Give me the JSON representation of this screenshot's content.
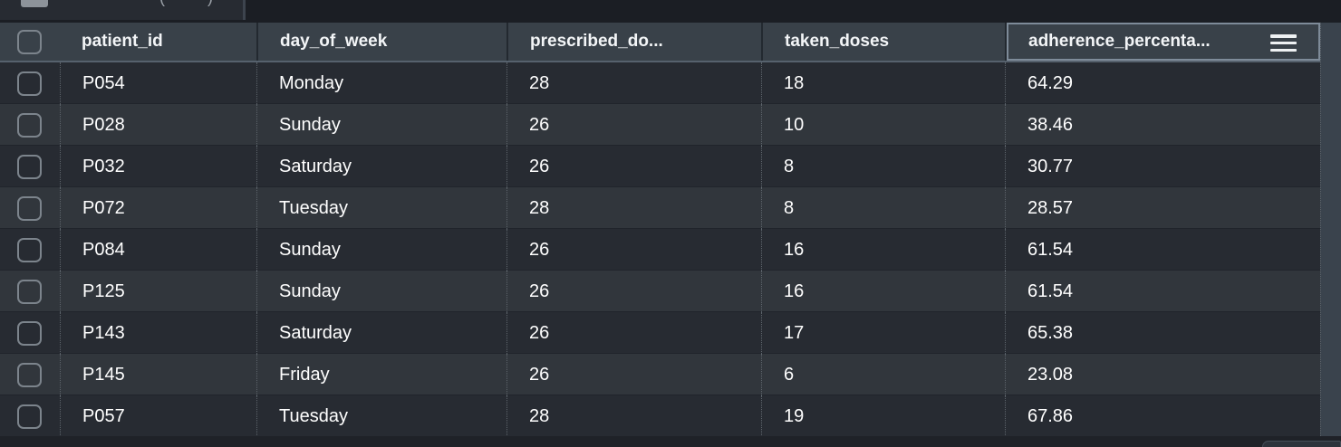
{
  "top_bar": {
    "tab": {
      "icon": "table-icon",
      "partial_text_left": "(",
      "partial_text_right": ")"
    }
  },
  "table": {
    "header": {
      "columns": [
        "patient_id",
        "day_of_week",
        "prescribed_do...",
        "taken_doses",
        "adherence_percenta..."
      ],
      "column_names": [
        "column-header-patient-id",
        "column-header-day-of-week",
        "column-header-prescribed-doses",
        "column-header-taken-doses",
        "column-header-adherence-percentage"
      ],
      "menu_icon": "hamburger-icon",
      "select_all_icon": "checkbox-icon"
    },
    "rows": [
      [
        "P054",
        "Monday",
        "28",
        "18",
        "64.29"
      ],
      [
        "P028",
        "Sunday",
        "26",
        "10",
        "38.46"
      ],
      [
        "P032",
        "Saturday",
        "26",
        "8",
        "30.77"
      ],
      [
        "P072",
        "Tuesday",
        "28",
        "8",
        "28.57"
      ],
      [
        "P084",
        "Sunday",
        "26",
        "16",
        "61.54"
      ],
      [
        "P125",
        "Sunday",
        "26",
        "16",
        "61.54"
      ],
      [
        "P143",
        "Saturday",
        "26",
        "17",
        "65.38"
      ],
      [
        "P145",
        "Friday",
        "26",
        "6",
        "23.08"
      ],
      [
        "P057",
        "Tuesday",
        "28",
        "19",
        "67.86"
      ]
    ]
  },
  "colors": {
    "page_bg": "#1b1e24",
    "tab_bg": "#272b32",
    "header_bg": "#394149",
    "header_text": "#f3f5f7",
    "row_dark": "#272b32",
    "row_light": "#31363c",
    "cell_text": "#ffffff",
    "gutter_bg": "#3a434d",
    "checkbox_border": "#7c848c",
    "selected_header_outline": "#7e8b99",
    "dotted_separator": "#5c636a"
  }
}
